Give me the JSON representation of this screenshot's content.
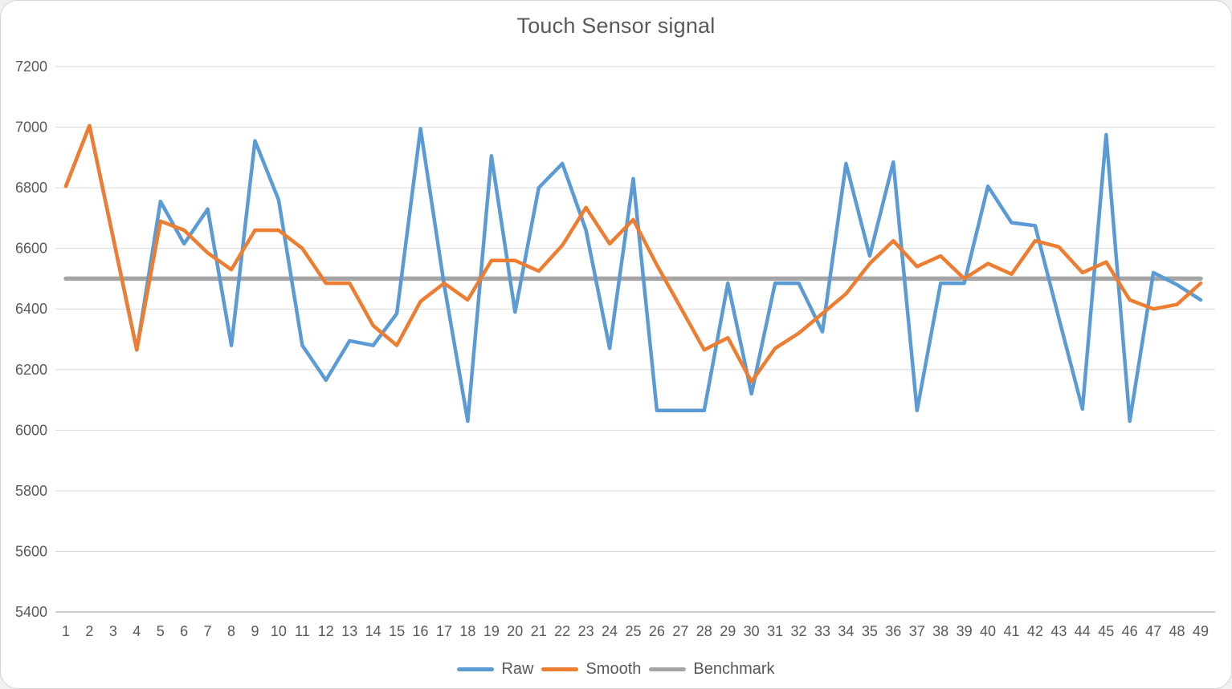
{
  "chart_data": {
    "type": "line",
    "title": "Touch Sensor signal",
    "x": [
      1,
      2,
      3,
      4,
      5,
      6,
      7,
      8,
      9,
      10,
      11,
      12,
      13,
      14,
      15,
      16,
      17,
      18,
      19,
      20,
      21,
      22,
      23,
      24,
      25,
      26,
      27,
      28,
      29,
      30,
      31,
      32,
      33,
      34,
      35,
      36,
      37,
      38,
      39,
      40,
      41,
      42,
      43,
      44,
      45,
      46,
      47,
      48,
      49
    ],
    "series": [
      {
        "name": "Raw",
        "color": "#5B9BD5",
        "values": [
          6805,
          7005,
          6635,
          6265,
          6755,
          6615,
          6730,
          6280,
          6955,
          6760,
          6280,
          6165,
          6295,
          6280,
          6385,
          6995,
          6480,
          6030,
          6905,
          6390,
          6800,
          6880,
          6660,
          6270,
          6830,
          6065,
          6065,
          6065,
          6485,
          6120,
          6485,
          6485,
          6325,
          6880,
          6575,
          6885,
          6065,
          6485,
          6485,
          6805,
          6685,
          6675,
          6370,
          6070,
          6975,
          6030,
          6520,
          6480,
          6430
        ]
      },
      {
        "name": "Smooth",
        "color": "#ED7D31",
        "values": [
          6805,
          7005,
          6635,
          6265,
          6690,
          6660,
          6585,
          6530,
          6660,
          6660,
          6600,
          6485,
          6485,
          6345,
          6280,
          6425,
          6485,
          6430,
          6560,
          6560,
          6525,
          6610,
          6735,
          6615,
          6695,
          6545,
          6405,
          6265,
          6305,
          6160,
          6270,
          6320,
          6385,
          6450,
          6550,
          6625,
          6540,
          6575,
          6500,
          6550,
          6515,
          6625,
          6605,
          6520,
          6555,
          6430,
          6400,
          6415,
          6485
        ]
      },
      {
        "name": "Benchmark",
        "color": "#A5A5A5",
        "constant": 6500
      }
    ],
    "y_axis": {
      "min": 5400,
      "max": 7200,
      "step": 200,
      "tick_values": [
        5400,
        5600,
        5800,
        6000,
        6200,
        6400,
        6600,
        6800,
        7000,
        7200
      ],
      "tick_labels": [
        "5400",
        "5600",
        "5800",
        "6000",
        "6200",
        "6400",
        "6600",
        "6800",
        "7000",
        "7200"
      ]
    },
    "x_axis": {
      "labels": [
        "1",
        "2",
        "3",
        "4",
        "5",
        "6",
        "7",
        "8",
        "9",
        "10",
        "11",
        "12",
        "13",
        "14",
        "15",
        "16",
        "17",
        "18",
        "19",
        "20",
        "21",
        "22",
        "23",
        "24",
        "25",
        "26",
        "27",
        "28",
        "29",
        "30",
        "31",
        "32",
        "33",
        "34",
        "35",
        "36",
        "37",
        "38",
        "39",
        "40",
        "41",
        "42",
        "43",
        "44",
        "45",
        "46",
        "47",
        "48",
        "49"
      ]
    },
    "legend": {
      "position": "bottom",
      "entries": [
        "Raw",
        "Smooth",
        "Benchmark"
      ]
    },
    "grid": true,
    "colors": {
      "gridline": "#D9D9D9",
      "axis_line": "#BFBFBF",
      "text": "#595959",
      "background": "#FFFFFF"
    }
  }
}
